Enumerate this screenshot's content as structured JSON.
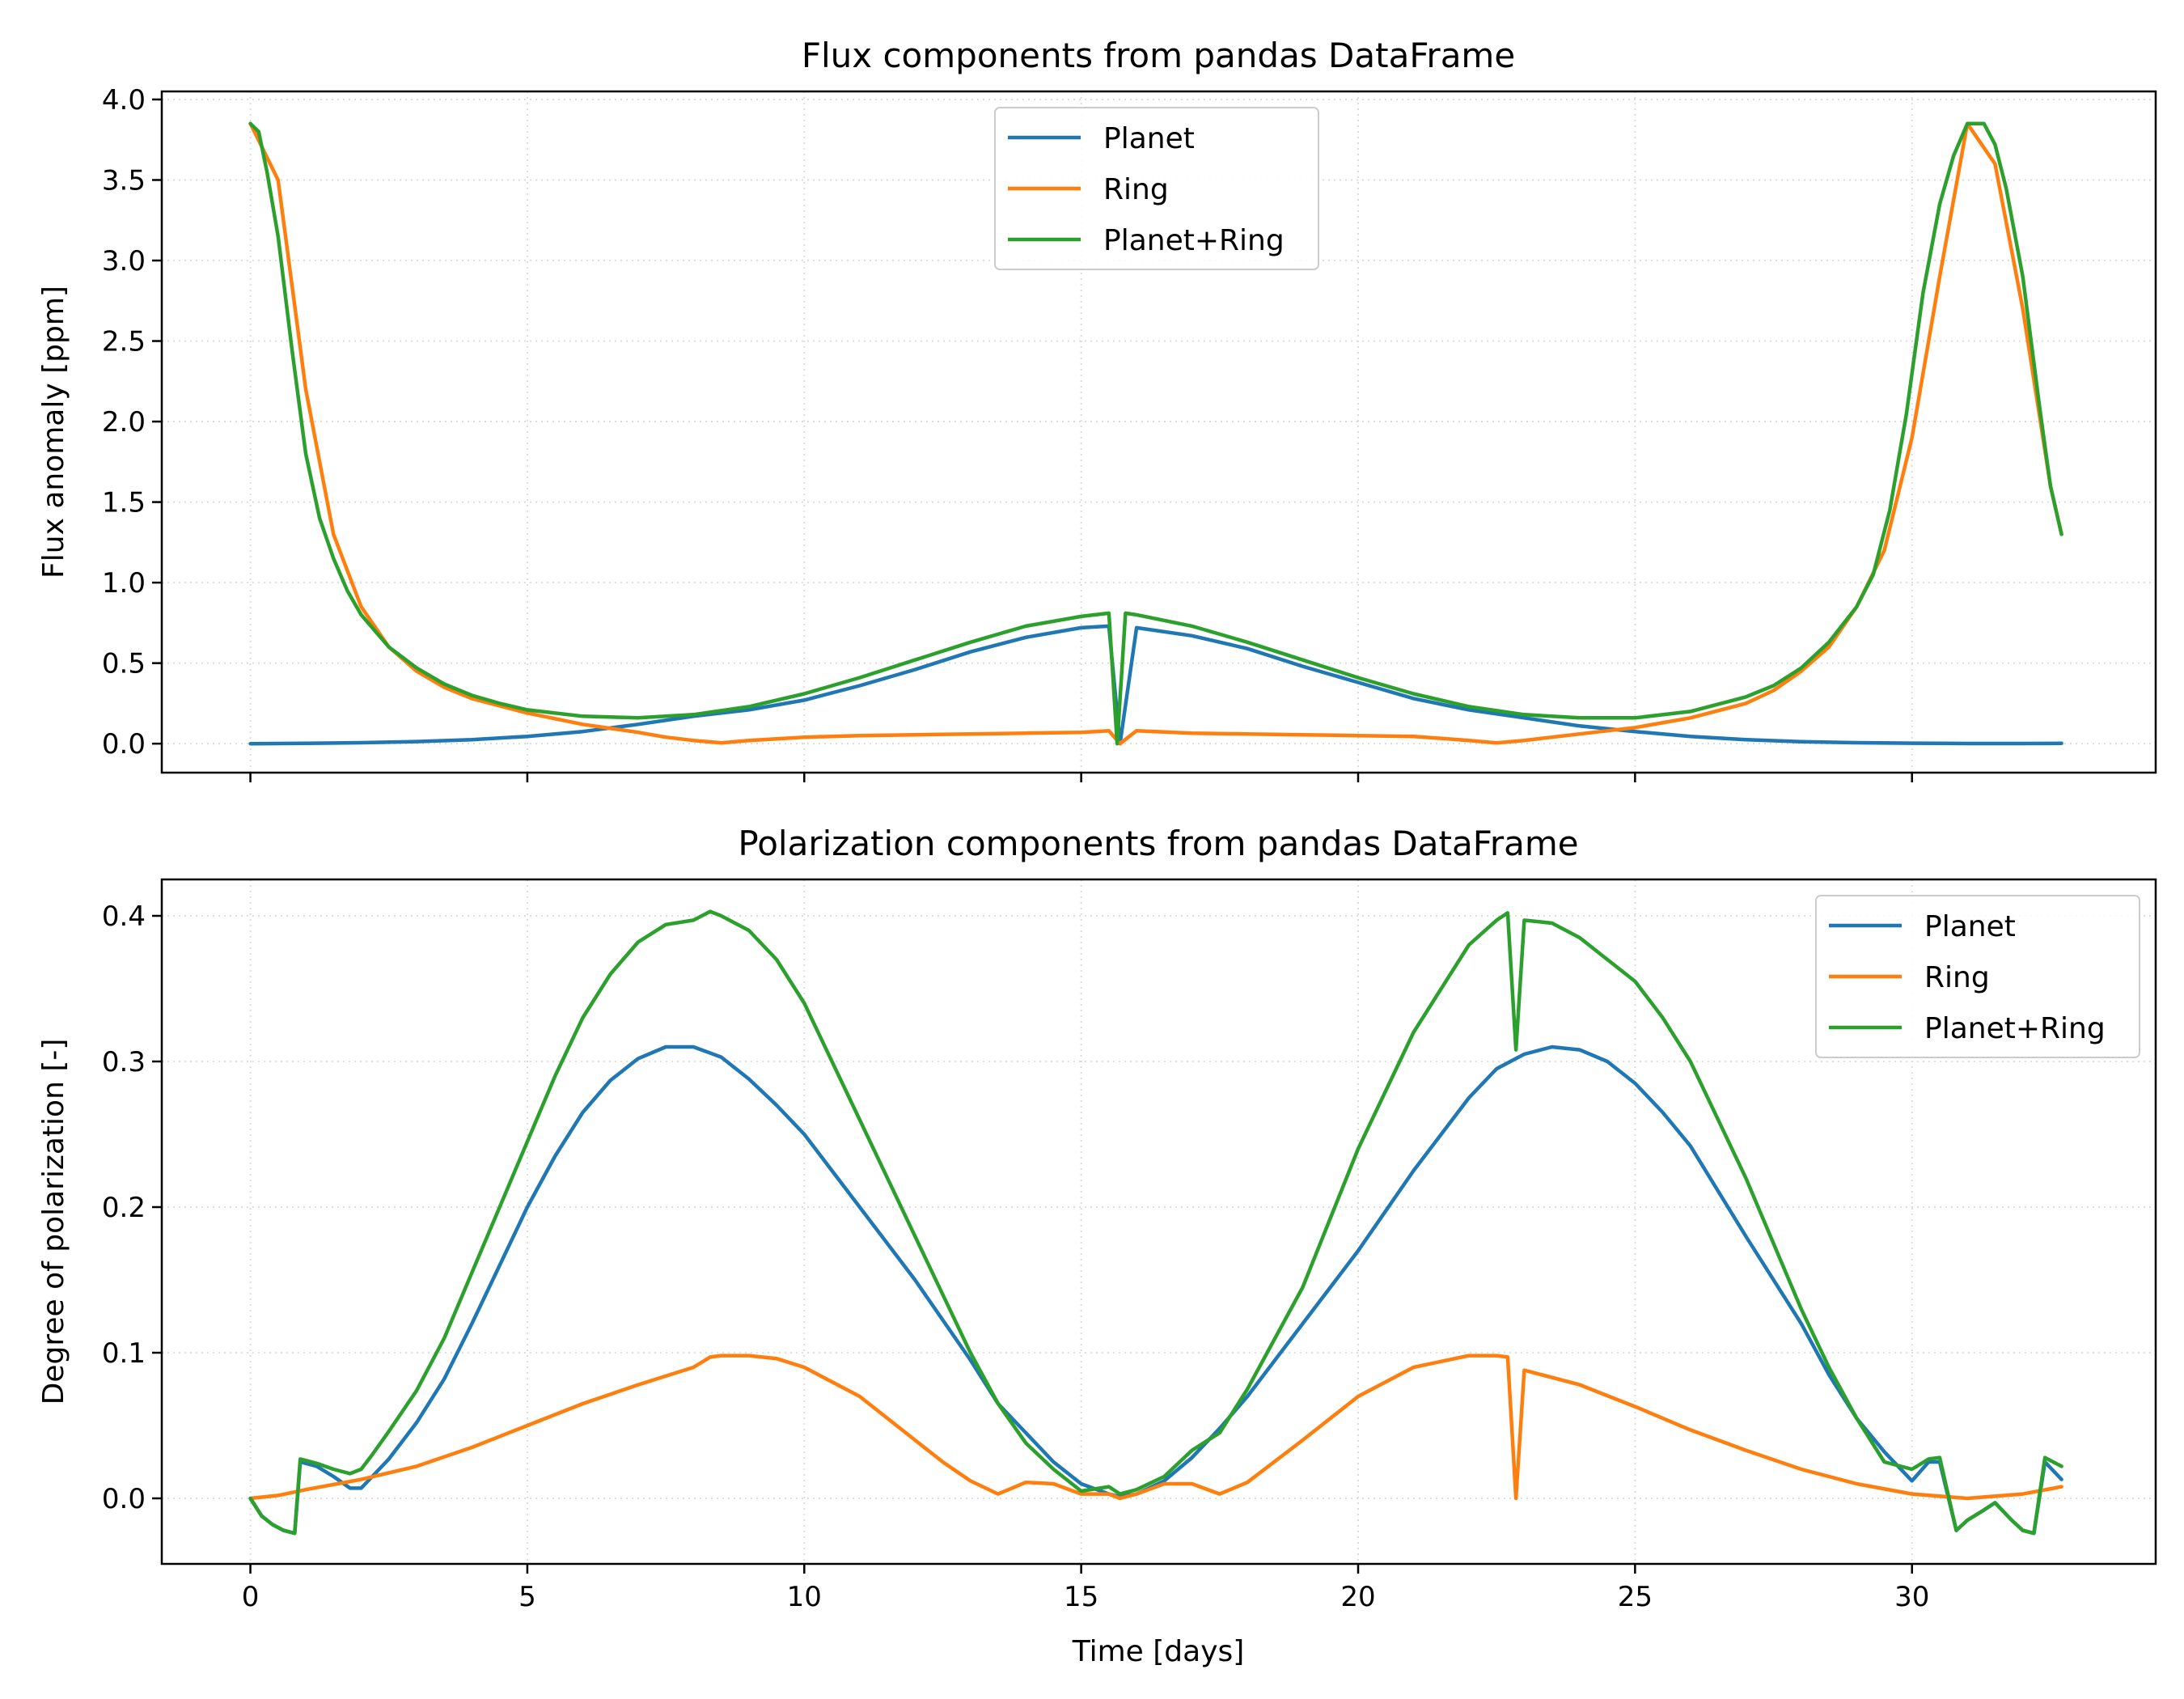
{
  "chart_data": [
    {
      "type": "line",
      "title": "Flux components from pandas DataFrame",
      "xlabel": "",
      "ylabel": "Flux anomaly [ppm]",
      "xlim": [
        -1.6,
        34.4
      ],
      "ylim": [
        -0.18,
        4.05
      ],
      "xticks": [
        0,
        5,
        10,
        15,
        20,
        25,
        30
      ],
      "xtick_labels": [
        "",
        "",
        "",
        "",
        "",
        "",
        ""
      ],
      "yticks": [
        0.0,
        0.5,
        1.0,
        1.5,
        2.0,
        2.5,
        3.0,
        3.5,
        4.0
      ],
      "ytick_labels": [
        "0.0",
        "0.5",
        "1.0",
        "1.5",
        "2.0",
        "2.5",
        "3.0",
        "3.5",
        "4.0"
      ],
      "grid": true,
      "legend_position": "upper center",
      "series": [
        {
          "name": "Planet",
          "color": "#1f77b4",
          "x": [
            0,
            1,
            2,
            3,
            4,
            5,
            6,
            7,
            8,
            9,
            10,
            11,
            12,
            13,
            14,
            15,
            15.5,
            15.7,
            16,
            17,
            18,
            19,
            20,
            21,
            22,
            23,
            24,
            25,
            26,
            27,
            28,
            29,
            30,
            31,
            32,
            32.7
          ],
          "y": [
            0.0,
            0.002,
            0.006,
            0.013,
            0.025,
            0.045,
            0.075,
            0.12,
            0.17,
            0.21,
            0.27,
            0.36,
            0.46,
            0.57,
            0.66,
            0.72,
            0.73,
            0.0,
            0.72,
            0.67,
            0.59,
            0.48,
            0.38,
            0.28,
            0.21,
            0.16,
            0.11,
            0.075,
            0.045,
            0.025,
            0.012,
            0.006,
            0.003,
            0.001,
            0.001,
            0.002
          ]
        },
        {
          "name": "Ring",
          "color": "#ff7f0e",
          "x": [
            0,
            0.5,
            1,
            1.5,
            2,
            2.5,
            3,
            3.5,
            4,
            5,
            6,
            7,
            7.5,
            8,
            8.5,
            9,
            10,
            11,
            12,
            13,
            14,
            15,
            15.5,
            15.7,
            16,
            17,
            18,
            19,
            20,
            21,
            22,
            22.5,
            23,
            24,
            25,
            26,
            27,
            27.5,
            28,
            28.5,
            29,
            29.5,
            30,
            30.5,
            31,
            31.5,
            32,
            32.5,
            32.7
          ],
          "y": [
            3.85,
            3.5,
            2.2,
            1.3,
            0.85,
            0.6,
            0.45,
            0.35,
            0.28,
            0.19,
            0.12,
            0.07,
            0.04,
            0.02,
            0.005,
            0.02,
            0.04,
            0.05,
            0.055,
            0.06,
            0.065,
            0.07,
            0.08,
            0.0,
            0.08,
            0.065,
            0.06,
            0.055,
            0.05,
            0.045,
            0.02,
            0.005,
            0.02,
            0.06,
            0.1,
            0.16,
            0.25,
            0.33,
            0.45,
            0.6,
            0.85,
            1.2,
            1.9,
            2.9,
            3.85,
            3.6,
            2.7,
            1.6,
            1.3
          ]
        },
        {
          "name": "Planet+Ring",
          "color": "#2ca02c",
          "x": [
            0,
            0.15,
            0.3,
            0.5,
            0.75,
            1,
            1.25,
            1.5,
            1.75,
            2,
            2.5,
            3,
            3.5,
            4,
            4.5,
            5,
            6,
            7,
            8,
            9,
            10,
            11,
            12,
            13,
            14,
            15,
            15.5,
            15.65,
            15.8,
            16,
            17,
            18,
            19,
            20,
            21,
            22,
            23,
            24,
            25,
            26,
            27,
            27.5,
            28,
            28.5,
            29,
            29.3,
            29.6,
            29.9,
            30.2,
            30.5,
            30.75,
            31,
            31.3,
            31.5,
            31.7,
            32,
            32.3,
            32.5,
            32.7
          ],
          "y": [
            3.85,
            3.8,
            3.55,
            3.15,
            2.45,
            1.8,
            1.4,
            1.15,
            0.95,
            0.8,
            0.6,
            0.47,
            0.37,
            0.3,
            0.25,
            0.21,
            0.17,
            0.16,
            0.18,
            0.23,
            0.31,
            0.41,
            0.52,
            0.63,
            0.73,
            0.79,
            0.81,
            0.0,
            0.81,
            0.8,
            0.73,
            0.63,
            0.52,
            0.41,
            0.31,
            0.23,
            0.18,
            0.16,
            0.16,
            0.2,
            0.29,
            0.36,
            0.47,
            0.63,
            0.85,
            1.05,
            1.45,
            2.05,
            2.8,
            3.35,
            3.65,
            3.85,
            3.85,
            3.72,
            3.45,
            2.9,
            2.1,
            1.6,
            1.3
          ]
        }
      ]
    },
    {
      "type": "line",
      "title": "Polarization components from pandas DataFrame",
      "xlabel": "Time [days]",
      "ylabel": "Degree of polarization [-]",
      "xlim": [
        -1.6,
        34.4
      ],
      "ylim": [
        -0.045,
        0.425
      ],
      "xticks": [
        0,
        5,
        10,
        15,
        20,
        25,
        30
      ],
      "xtick_labels": [
        "0",
        "5",
        "10",
        "15",
        "20",
        "25",
        "30"
      ],
      "yticks": [
        0.0,
        0.1,
        0.2,
        0.3,
        0.4
      ],
      "ytick_labels": [
        "0.0",
        "0.1",
        "0.2",
        "0.3",
        "0.4"
      ],
      "grid": true,
      "legend_position": "upper right",
      "series": [
        {
          "name": "Planet",
          "color": "#1f77b4",
          "x": [
            0,
            0.2,
            0.4,
            0.6,
            0.8,
            0.9,
            1.2,
            1.5,
            1.8,
            2.0,
            2.2,
            2.5,
            3,
            3.5,
            4,
            4.5,
            5,
            5.5,
            6,
            6.5,
            7,
            7.5,
            8,
            8.5,
            9,
            9.5,
            10,
            11,
            12,
            13,
            13.5,
            14,
            14.5,
            15,
            15.5,
            15.7,
            16,
            16.5,
            17,
            17.5,
            18,
            19,
            20,
            21,
            22,
            22.5,
            23,
            23.5,
            24,
            24.5,
            25,
            25.5,
            26,
            27,
            28,
            28.5,
            29,
            29.5,
            30,
            30.3,
            30.5,
            30.8,
            31,
            31.3,
            31.5,
            31.8,
            32,
            32.2,
            32.4,
            32.7
          ],
          "y": [
            0.0,
            -0.012,
            -0.018,
            -0.022,
            -0.024,
            0.025,
            0.022,
            0.015,
            0.007,
            0.007,
            0.015,
            0.027,
            0.052,
            0.082,
            0.12,
            0.16,
            0.2,
            0.235,
            0.265,
            0.287,
            0.302,
            0.31,
            0.31,
            0.303,
            0.288,
            0.27,
            0.25,
            0.2,
            0.15,
            0.095,
            0.065,
            0.045,
            0.025,
            0.01,
            0.003,
            0.001,
            0.003,
            0.012,
            0.028,
            0.048,
            0.07,
            0.12,
            0.17,
            0.225,
            0.275,
            0.295,
            0.305,
            0.31,
            0.308,
            0.3,
            0.285,
            0.265,
            0.242,
            0.18,
            0.12,
            0.085,
            0.055,
            0.032,
            0.012,
            0.025,
            0.025,
            -0.022,
            -0.015,
            -0.008,
            -0.003,
            -0.015,
            -0.022,
            -0.024,
            0.025,
            0.013
          ]
        },
        {
          "name": "Ring",
          "color": "#ff7f0e",
          "x": [
            0,
            0.5,
            1,
            2,
            3,
            4,
            5,
            6,
            7,
            8,
            8.3,
            8.5,
            9,
            9.5,
            10,
            11,
            12,
            12.5,
            13,
            13.5,
            14,
            14.5,
            15,
            15.5,
            15.7,
            16,
            16.5,
            17,
            17.5,
            18,
            19,
            20,
            21,
            22,
            22.5,
            22.7,
            22.85,
            23.0,
            24,
            25,
            26,
            27,
            28,
            29,
            30,
            31,
            32,
            32.7
          ],
          "y": [
            0.0,
            0.002,
            0.006,
            0.013,
            0.022,
            0.035,
            0.05,
            0.065,
            0.078,
            0.09,
            0.097,
            0.098,
            0.098,
            0.096,
            0.09,
            0.07,
            0.04,
            0.025,
            0.012,
            0.003,
            0.011,
            0.01,
            0.003,
            0.003,
            0.0,
            0.003,
            0.01,
            0.01,
            0.003,
            0.011,
            0.04,
            0.07,
            0.09,
            0.098,
            0.098,
            0.097,
            0.0,
            0.088,
            0.078,
            0.063,
            0.047,
            0.033,
            0.02,
            0.01,
            0.003,
            0.0,
            0.003,
            0.008
          ]
        },
        {
          "name": "Planet+Ring",
          "color": "#2ca02c",
          "x": [
            0,
            0.2,
            0.4,
            0.6,
            0.8,
            0.9,
            1.2,
            1.5,
            1.8,
            2.0,
            2.2,
            2.5,
            3,
            3.5,
            4,
            4.5,
            5,
            5.5,
            6,
            6.5,
            7,
            7.5,
            8,
            8.3,
            8.5,
            9,
            9.5,
            10,
            11,
            12,
            13,
            13.5,
            14,
            14.5,
            15,
            15.5,
            15.7,
            16,
            16.5,
            17,
            17.5,
            18,
            19,
            20,
            21,
            22,
            22.5,
            22.7,
            22.85,
            23.0,
            23.5,
            24,
            24.5,
            25,
            25.5,
            26,
            27,
            28,
            28.5,
            29,
            29.5,
            30,
            30.3,
            30.5,
            30.8,
            31,
            31.3,
            31.5,
            31.8,
            32,
            32.2,
            32.4,
            32.7
          ],
          "y": [
            0.0,
            -0.012,
            -0.018,
            -0.022,
            -0.024,
            0.027,
            0.024,
            0.02,
            0.017,
            0.02,
            0.03,
            0.046,
            0.074,
            0.11,
            0.155,
            0.2,
            0.245,
            0.29,
            0.33,
            0.36,
            0.382,
            0.394,
            0.397,
            0.403,
            0.4,
            0.39,
            0.37,
            0.34,
            0.26,
            0.18,
            0.1,
            0.065,
            0.038,
            0.02,
            0.005,
            0.008,
            0.003,
            0.006,
            0.015,
            0.033,
            0.045,
            0.075,
            0.145,
            0.24,
            0.32,
            0.38,
            0.397,
            0.402,
            0.308,
            0.397,
            0.395,
            0.385,
            0.37,
            0.355,
            0.33,
            0.3,
            0.22,
            0.13,
            0.09,
            0.055,
            0.025,
            0.02,
            0.027,
            0.028,
            -0.022,
            -0.015,
            -0.008,
            -0.003,
            -0.015,
            -0.022,
            -0.024,
            0.028,
            0.022
          ]
        }
      ]
    }
  ]
}
